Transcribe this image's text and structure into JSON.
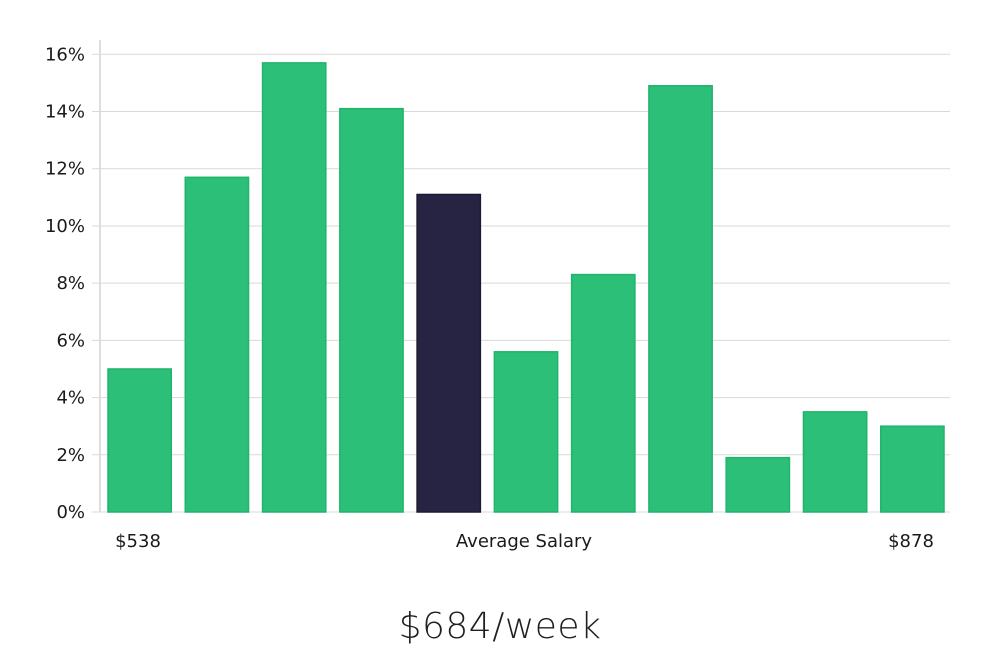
{
  "chart_data": {
    "type": "bar",
    "values": [
      5.0,
      11.7,
      15.7,
      14.1,
      11.1,
      5.6,
      8.3,
      14.9,
      1.9,
      3.5,
      3.0
    ],
    "highlight_index": 4,
    "ylim": [
      0,
      16.5
    ],
    "y_ticks": [
      0,
      2,
      4,
      6,
      8,
      10,
      12,
      14,
      16
    ],
    "y_tick_format": "%",
    "x_labels": {
      "left": "$538",
      "center": "Average Salary",
      "right": "$878"
    },
    "grid": true,
    "colors": {
      "bar": "#2bbf78",
      "bar_stroke": "#22b36d",
      "highlight": "#272443"
    }
  },
  "summary": {
    "value": "$684/week"
  }
}
